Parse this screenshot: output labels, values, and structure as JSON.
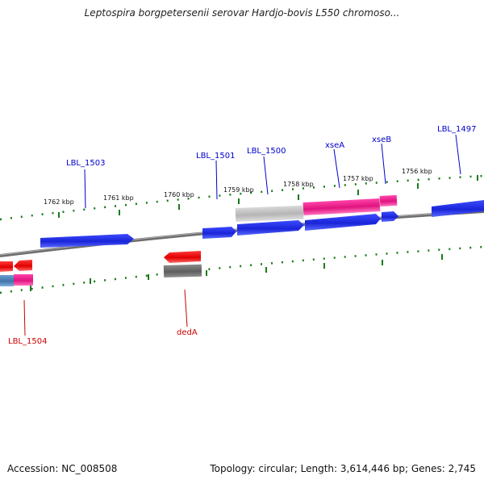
{
  "title": "Leptospira borgpetersenii serovar Hardjo-bovis L550 chromoso...",
  "footer": {
    "accession": "Accession: NC_008508",
    "summary": "Topology: circular; Length: 3,614,446 bp; Genes: 2,745"
  },
  "colors": {
    "forward_label": "#0000cc",
    "reverse_label": "#cc0000",
    "forward_gene": "#1f2fd6",
    "reverse_gene": "#ee1111",
    "pink_gene": "#ee1f8f",
    "gray_gene": "#bdbdbd",
    "dark_gray_gene": "#6e6e6e",
    "teal_gene": "#4a7fb0",
    "backbone": "#7a7a7a",
    "tick": "#1a7a1a"
  },
  "kbp_ticks": [
    "1756 kbp",
    "1757 kbp",
    "1758 kbp",
    "1759 kbp",
    "1760 kbp",
    "1761 kbp",
    "1762 kbp"
  ],
  "forward_gene_labels": [
    "LBL_1497",
    "xseB",
    "xseA",
    "LBL_1500",
    "LBL_1501",
    "LBL_1503"
  ],
  "reverse_gene_labels": [
    "dedA",
    "LBL_1504"
  ]
}
